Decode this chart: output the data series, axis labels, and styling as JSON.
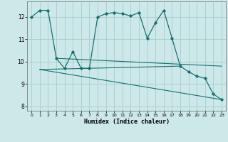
{
  "xlabel": "Humidex (Indice chaleur)",
  "bg_color": "#cce8e8",
  "grid_color": "#aacccc",
  "line_color": "#1a7070",
  "xlim": [
    -0.5,
    23.5
  ],
  "ylim": [
    7.8,
    12.7
  ],
  "xticks": [
    0,
    1,
    2,
    3,
    4,
    5,
    6,
    7,
    8,
    9,
    10,
    11,
    12,
    13,
    14,
    15,
    16,
    17,
    18,
    19,
    20,
    21,
    22,
    23
  ],
  "yticks": [
    8,
    9,
    10,
    11,
    12
  ],
  "series1_x": [
    0,
    1,
    2,
    3,
    4,
    5,
    6,
    7,
    8,
    9,
    10,
    11,
    12,
    13,
    14,
    15,
    16,
    17,
    18,
    19,
    20,
    21,
    22,
    23
  ],
  "series1_y": [
    12.0,
    12.3,
    12.3,
    10.15,
    9.7,
    10.45,
    9.7,
    9.7,
    12.0,
    12.15,
    12.2,
    12.15,
    12.05,
    12.2,
    11.05,
    11.75,
    12.3,
    11.05,
    9.8,
    9.55,
    9.35,
    9.25,
    8.55,
    8.3
  ],
  "trend1_x": [
    1,
    18
  ],
  "trend1_y": [
    9.65,
    9.8
  ],
  "trend2_x": [
    1,
    23
  ],
  "trend2_y": [
    9.65,
    8.3
  ],
  "trend3_x": [
    3,
    23
  ],
  "trend3_y": [
    10.15,
    9.8
  ]
}
